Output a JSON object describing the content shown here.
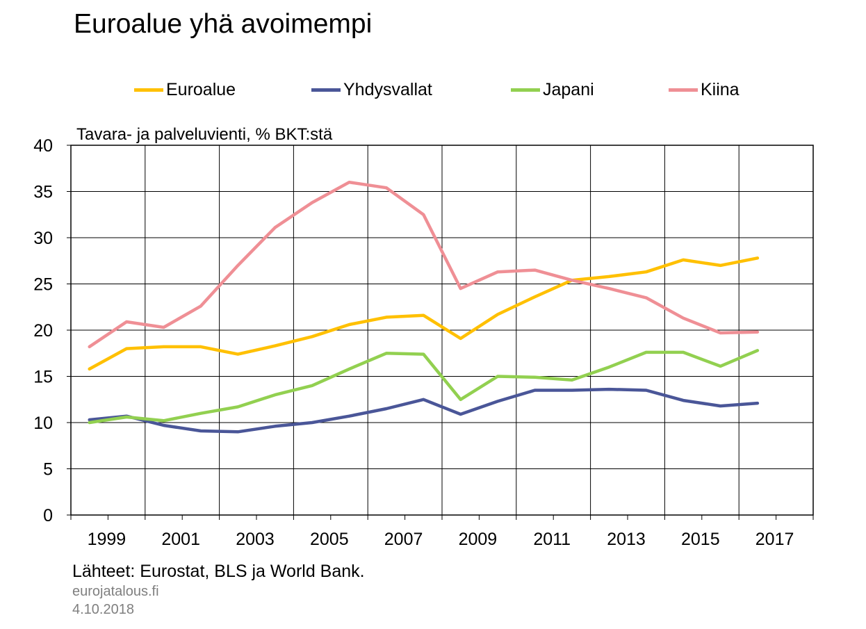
{
  "title": "Euroalue yhä avoimempi",
  "colors": {
    "Euroalue": "#ffc000",
    "Yhdysvallat": "#4a5698",
    "Japani": "#92d050",
    "Kiina": "#ef8f95"
  },
  "chart_data": {
    "type": "line",
    "title": "Euroalue yhä avoimempi",
    "ylabel": "Tavara- ja palveluvienti, % BKT:stä",
    "xlabel": "",
    "x": [
      1999,
      2000,
      2001,
      2002,
      2003,
      2004,
      2005,
      2006,
      2007,
      2008,
      2009,
      2010,
      2011,
      2012,
      2013,
      2014,
      2015,
      2016,
      2017
    ],
    "ylim": [
      0,
      40
    ],
    "yticks": [
      "0",
      "5",
      "10",
      "15",
      "20",
      "25",
      "30",
      "35",
      "40"
    ],
    "xticks": [
      "1999",
      "2001",
      "2003",
      "2005",
      "2007",
      "2009",
      "2011",
      "2013",
      "2015",
      "2017"
    ],
    "grid": true,
    "legend_position": "top",
    "series": [
      {
        "name": "Euroalue",
        "values": [
          15.8,
          18.0,
          18.2,
          18.2,
          17.4,
          18.3,
          19.3,
          20.6,
          21.4,
          21.6,
          19.1,
          21.7,
          23.6,
          25.4,
          25.8,
          26.3,
          27.6,
          27.0,
          27.8
        ]
      },
      {
        "name": "Yhdysvallat",
        "values": [
          10.3,
          10.7,
          9.7,
          9.1,
          9.0,
          9.6,
          10.0,
          10.7,
          11.5,
          12.5,
          10.9,
          12.3,
          13.5,
          13.5,
          13.6,
          13.5,
          12.4,
          11.8,
          12.1
        ]
      },
      {
        "name": "Japani",
        "values": [
          10.0,
          10.6,
          10.2,
          11.0,
          11.7,
          13.0,
          14.0,
          15.8,
          17.5,
          17.4,
          12.5,
          15.0,
          14.9,
          14.6,
          16.0,
          17.6,
          17.6,
          16.1,
          17.8
        ]
      },
      {
        "name": "Kiina",
        "values": [
          18.2,
          20.9,
          20.3,
          22.6,
          27.0,
          31.1,
          33.8,
          36.0,
          35.4,
          32.5,
          24.5,
          26.3,
          26.5,
          25.4,
          24.5,
          23.5,
          21.3,
          19.7,
          19.8
        ]
      }
    ]
  },
  "footer": {
    "source": "Lähteet: Eurostat, BLS ja World Bank.",
    "site": "eurojatalous.fi",
    "date": "4.10.2018"
  }
}
